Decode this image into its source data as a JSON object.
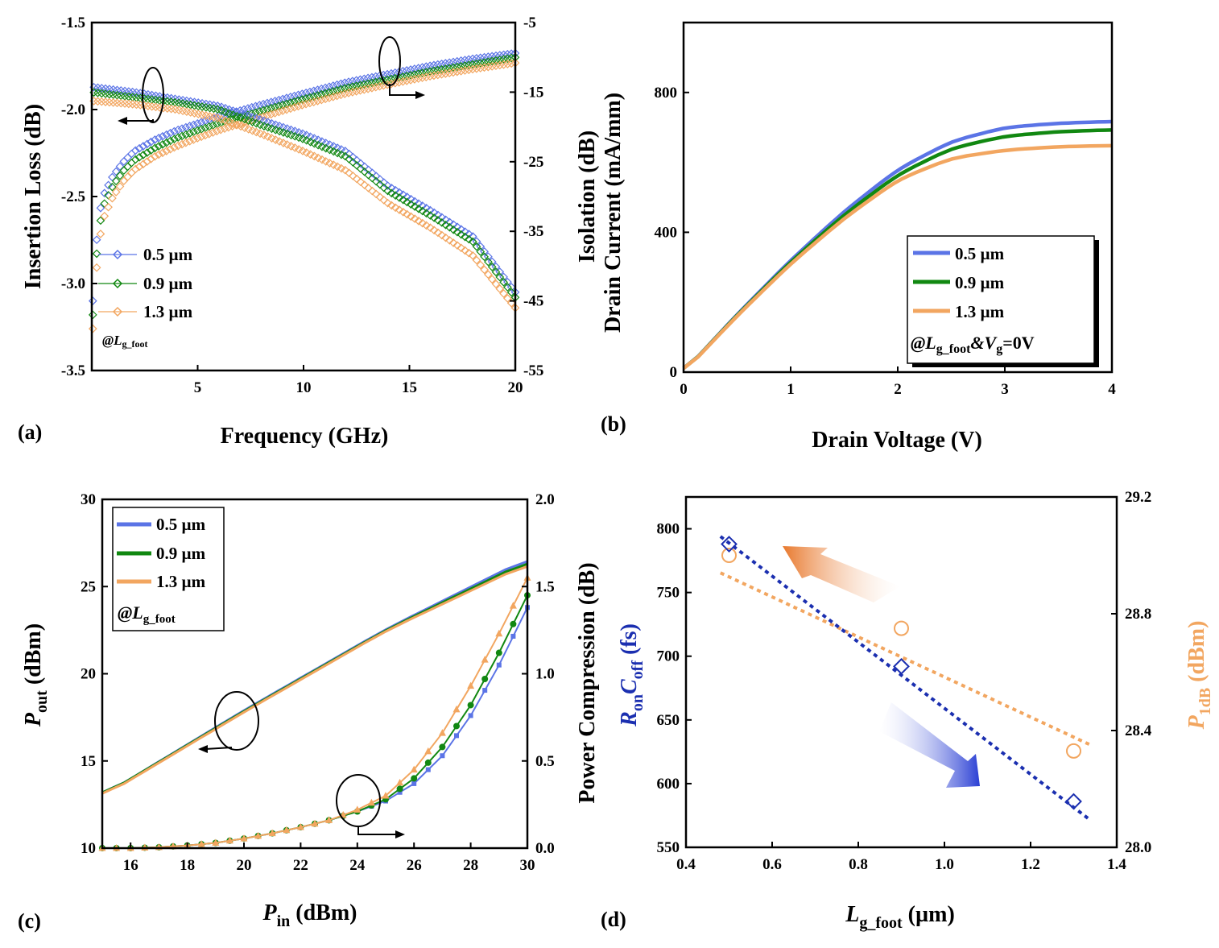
{
  "figure": {
    "panel_labels": [
      "(a)",
      "(b)",
      "(c)",
      "(d)"
    ],
    "series_colors": {
      "s05": "#5b74e6",
      "s09": "#118811",
      "s13": "#f2a660"
    }
  },
  "chart_data": [
    {
      "id": "a",
      "type": "scatter",
      "xlabel": "Frequency (GHz)",
      "xlim": [
        0,
        20
      ],
      "xticks": [
        5,
        10,
        15,
        20
      ],
      "ylabel": "Insertion Loss (dB)",
      "ylim": [
        -3.5,
        -1.5
      ],
      "yticks": [
        -3.5,
        -3.0,
        -2.5,
        -2.0,
        -1.5
      ],
      "yticks_text": [
        "-3.5",
        "-3.0",
        "-2.5",
        "-2.0",
        "-1.5"
      ],
      "y2label": "Isolation (dB)",
      "y2lim": [
        -55,
        -5
      ],
      "y2ticks": [
        -55,
        -45,
        -35,
        -25,
        -15,
        -5
      ],
      "legend": [
        "0.5 µm",
        "0.9 µm",
        "1.3 µm"
      ],
      "legend_note": "@L",
      "legend_note_sub": "g_foot",
      "insertion_loss_dB": {
        "x": [
          0,
          2,
          4,
          6,
          8,
          10,
          12,
          14,
          16,
          18,
          20
        ],
        "series": [
          {
            "name": "0.5 µm",
            "values": [
              -1.87,
              -1.9,
              -1.94,
              -1.98,
              -2.06,
              -2.14,
              -2.24,
              -2.44,
              -2.58,
              -2.73,
              -3.05
            ]
          },
          {
            "name": "0.9 µm",
            "values": [
              -1.9,
              -1.93,
              -1.96,
              -2.0,
              -2.09,
              -2.17,
              -2.27,
              -2.47,
              -2.61,
              -2.76,
              -3.08
            ]
          },
          {
            "name": "1.3 µm",
            "values": [
              -1.95,
              -1.97,
              -2.0,
              -2.05,
              -2.14,
              -2.24,
              -2.35,
              -2.54,
              -2.68,
              -2.84,
              -3.14
            ]
          }
        ]
      },
      "isolation_dB": {
        "x": [
          0.05,
          0.3,
          0.6,
          1,
          1.5,
          2,
          3,
          4,
          5,
          6,
          8,
          10,
          12,
          14,
          16,
          18,
          20
        ],
        "series": [
          {
            "name": "0.5 µm",
            "values": [
              -45,
              -33,
              -29.5,
              -27,
              -25,
              -23.5,
              -21.8,
              -20.5,
              -19.5,
              -18.5,
              -16.8,
              -15.2,
              -13.6,
              -12.4,
              -11.2,
              -10.2,
              -9.4
            ]
          },
          {
            "name": "0.9 µm",
            "values": [
              -47,
              -35,
              -31,
              -28.4,
              -26.3,
              -24.8,
              -23,
              -21.6,
              -20.5,
              -19.5,
              -17.7,
              -16,
              -14.4,
              -13.2,
              -12,
              -11,
              -10
            ]
          },
          {
            "name": "1.3 µm",
            "values": [
              -49,
              -37,
              -32.8,
              -30,
              -27.8,
              -26.2,
              -24.2,
              -22.8,
              -21.6,
              -20.5,
              -18.6,
              -16.8,
              -15.2,
              -13.9,
              -12.7,
              -11.7,
              -10.8
            ]
          }
        ]
      }
    },
    {
      "id": "b",
      "type": "line",
      "xlabel": "Drain Voltage (V)",
      "xlim": [
        0,
        4
      ],
      "xticks": [
        0,
        1,
        2,
        3,
        4
      ],
      "ylabel": "Drain Current (mA/mm)",
      "ylim": [
        0,
        1000
      ],
      "yticks": [
        0,
        400,
        800
      ],
      "legend": [
        "0.5 µm",
        "0.9 µm",
        "1.3 µm"
      ],
      "legend_note_parts": [
        "@L",
        "g_foot",
        "&V",
        "g",
        "=0V"
      ],
      "x": [
        0,
        0.5,
        1,
        1.5,
        2,
        2.5,
        3,
        3.5,
        4
      ],
      "series": [
        {
          "name": "0.5 µm",
          "values": [
            0,
            165,
            320,
            460,
            580,
            660,
            700,
            712,
            717
          ]
        },
        {
          "name": "0.9 µm",
          "values": [
            0,
            163,
            315,
            450,
            565,
            640,
            675,
            688,
            693
          ]
        },
        {
          "name": "1.3 µm",
          "values": [
            0,
            161,
            310,
            440,
            550,
            612,
            635,
            645,
            648
          ]
        }
      ]
    },
    {
      "id": "c",
      "type": "line",
      "xlabel_main": "P",
      "xlabel_sub": "in",
      "xlabel_rest": " (dBm)",
      "xlim": [
        15,
        30
      ],
      "xticks": [
        16,
        18,
        20,
        22,
        24,
        26,
        28,
        30
      ],
      "ylabel_main": "P",
      "ylabel_sub": "out",
      "ylabel_rest": " (dBm)",
      "ylim": [
        10,
        30
      ],
      "yticks": [
        10,
        15,
        20,
        25,
        30
      ],
      "y2label": "Power Compression (dB)",
      "y2lim": [
        0,
        2
      ],
      "y2ticks": [
        0,
        0.5,
        1,
        1.5,
        2
      ],
      "y2ticks_text": [
        "0.0",
        "0.5",
        "1.0",
        "1.5",
        "2.0"
      ],
      "legend": [
        "0.5 µm",
        "0.9 µm",
        "1.3 µm"
      ],
      "legend_note": "@L",
      "legend_note_sub": "g_foot",
      "pout": {
        "x": [
          15,
          20,
          25,
          30
        ],
        "series": [
          {
            "name": "0.5 µm",
            "values": [
              13.0,
              17.9,
              22.55,
              26.6
            ]
          },
          {
            "name": "0.9 µm",
            "values": [
              13.0,
              17.85,
              22.5,
              26.45
            ]
          },
          {
            "name": "1.3 µm",
            "values": [
              12.95,
              17.8,
              22.45,
              26.3
            ]
          }
        ]
      },
      "compression": {
        "x": [
          15,
          16,
          17,
          18,
          19,
          20,
          21,
          22,
          23,
          24,
          25,
          26,
          27,
          28,
          29,
          30
        ],
        "series": [
          {
            "name": "0.5 µm",
            "values": [
              0.0,
              0.0,
              0.005,
              0.015,
              0.03,
              0.055,
              0.085,
              0.12,
              0.16,
              0.21,
              0.27,
              0.37,
              0.53,
              0.76,
              1.05,
              1.38
            ]
          },
          {
            "name": "0.9 µm",
            "values": [
              0.0,
              0.0,
              0.005,
              0.015,
              0.03,
              0.055,
              0.085,
              0.12,
              0.16,
              0.21,
              0.28,
              0.4,
              0.58,
              0.82,
              1.12,
              1.45
            ]
          },
          {
            "name": "1.3 µm",
            "values": [
              0.0,
              0.0,
              0.005,
              0.015,
              0.03,
              0.055,
              0.085,
              0.12,
              0.16,
              0.22,
              0.3,
              0.45,
              0.66,
              0.93,
              1.23,
              1.55
            ]
          }
        ]
      }
    },
    {
      "id": "d",
      "type": "scatter",
      "xlabel_main": "L",
      "xlabel_sub": "g_foot",
      "xlabel_rest": " (µm)",
      "xlim": [
        0.4,
        1.4
      ],
      "xticks": [
        0.4,
        0.6,
        0.8,
        1.0,
        1.2,
        1.4
      ],
      "xticks_text": [
        "0.4",
        "0.6",
        "0.8",
        "1.0",
        "1.2",
        "1.4"
      ],
      "ylabel_parts": [
        "R",
        "on",
        "C",
        "off",
        " (fs)"
      ],
      "ylim": [
        550,
        825
      ],
      "yticks": [
        550,
        600,
        650,
        700,
        750,
        800
      ],
      "y2label_main": "P",
      "y2label_sub": "1dB",
      "y2label_rest": " (dBm)",
      "y2lim": [
        28.0,
        29.2
      ],
      "y2ticks": [
        28.0,
        28.4,
        28.8,
        29.2
      ],
      "y2ticks_text": [
        "28.0",
        "28.4",
        "28.8",
        "29.2"
      ],
      "ron_coff": {
        "x": [
          0.5,
          0.9,
          1.3
        ],
        "values": [
          788,
          692,
          586
        ],
        "fit_x": [
          0.48,
          1.34
        ],
        "fit_y": [
          794,
          571
        ]
      },
      "p1db": {
        "x": [
          0.5,
          0.9,
          1.3
        ],
        "values": [
          29.0,
          28.75,
          28.33
        ],
        "fit_x": [
          0.48,
          1.34
        ],
        "fit_y": [
          28.94,
          28.35
        ]
      }
    }
  ]
}
